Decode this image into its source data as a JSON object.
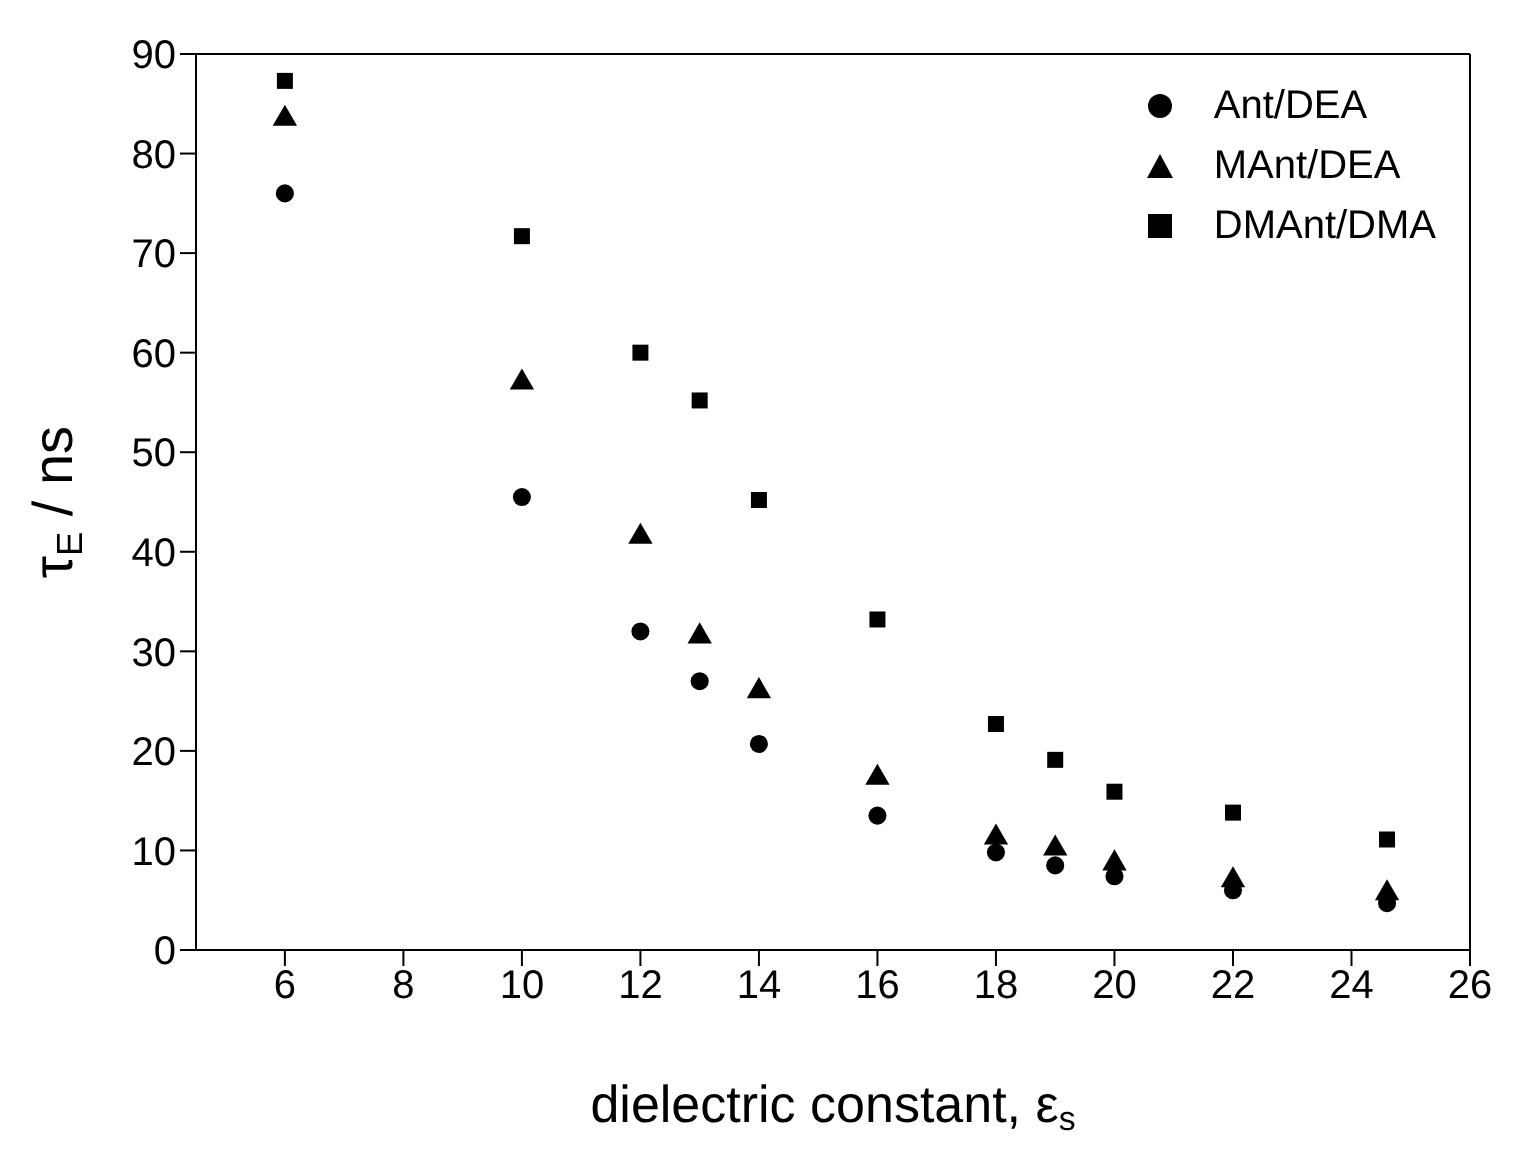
{
  "chart_data": {
    "type": "scatter",
    "xlabel": "dielectric constant, ε$_{s}$",
    "ylabel": "τ$_{E}$ / ns",
    "xlim": [
      4.5,
      26
    ],
    "xticks": [
      6,
      8,
      10,
      12,
      14,
      16,
      18,
      20,
      22,
      24,
      26
    ],
    "ylim": [
      0,
      90
    ],
    "yticks": [
      0,
      10,
      20,
      30,
      40,
      50,
      60,
      70,
      80,
      90
    ],
    "legend": "top right",
    "x": [
      6,
      10,
      12,
      13,
      14,
      16,
      18,
      19,
      20,
      22,
      24.6
    ],
    "series": [
      {
        "name": "Ant/DEA",
        "color": "#000000",
        "marker": "circle",
        "values": [
          76,
          45.5,
          32,
          27,
          20.7,
          13.5,
          9.8,
          8.5,
          7.4,
          6,
          4.7
        ]
      },
      {
        "name": "MAnt/DEA",
        "color": "#000000",
        "marker": "triangle",
        "values": [
          83.5,
          57,
          41.5,
          31.5,
          26,
          17.3,
          11.3,
          10.2,
          8.7,
          7,
          5.7
        ]
      },
      {
        "name": "DMAnt/DMA",
        "color": "#000000",
        "marker": "square",
        "values": [
          87.3,
          71.7,
          60,
          55.2,
          45.2,
          33.2,
          22.7,
          19.1,
          15.9,
          13.8,
          11.1
        ]
      }
    ]
  }
}
